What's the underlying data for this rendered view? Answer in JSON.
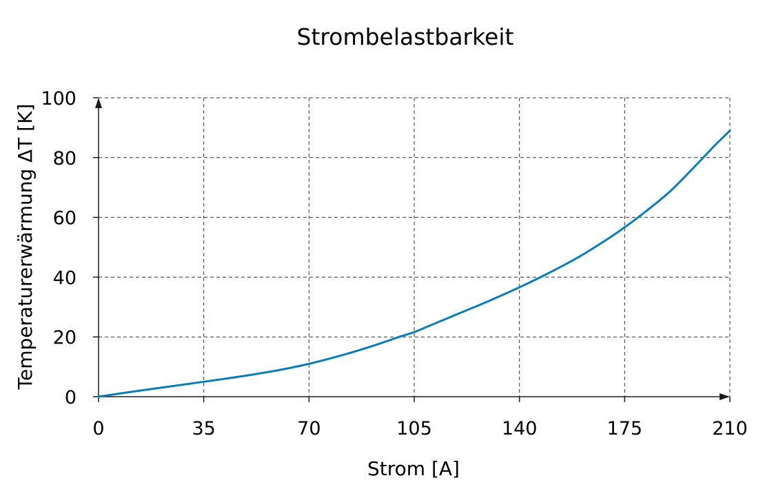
{
  "chart_data": {
    "type": "line",
    "title": "Strombelastbarkeit",
    "xlabel": "Strom [A]",
    "ylabel": "Temperaturerwärmung ΔT [K]",
    "xlim": [
      0,
      210
    ],
    "ylim": [
      0,
      100
    ],
    "xticks": [
      "0",
      "35",
      "70",
      "105",
      "140",
      "175",
      "210"
    ],
    "yticks": [
      "0",
      "20",
      "40",
      "60",
      "80",
      "100"
    ],
    "grid": true,
    "series": [
      {
        "color": "#0a7db8",
        "x": [
          0,
          10,
          20,
          30,
          35,
          40,
          50,
          60,
          70,
          80,
          90,
          100,
          105,
          110,
          120,
          130,
          140,
          150,
          160,
          170,
          175,
          180,
          190,
          200,
          205,
          210
        ],
        "y": [
          0,
          1.5,
          2.9,
          4.3,
          5.0,
          5.7,
          7.2,
          8.9,
          11.0,
          13.6,
          16.6,
          20.0,
          21.6,
          23.7,
          27.9,
          32.1,
          36.6,
          41.5,
          46.9,
          53.2,
          56.7,
          60.4,
          68.6,
          78.8,
          84.1,
          89.0
        ]
      }
    ]
  }
}
